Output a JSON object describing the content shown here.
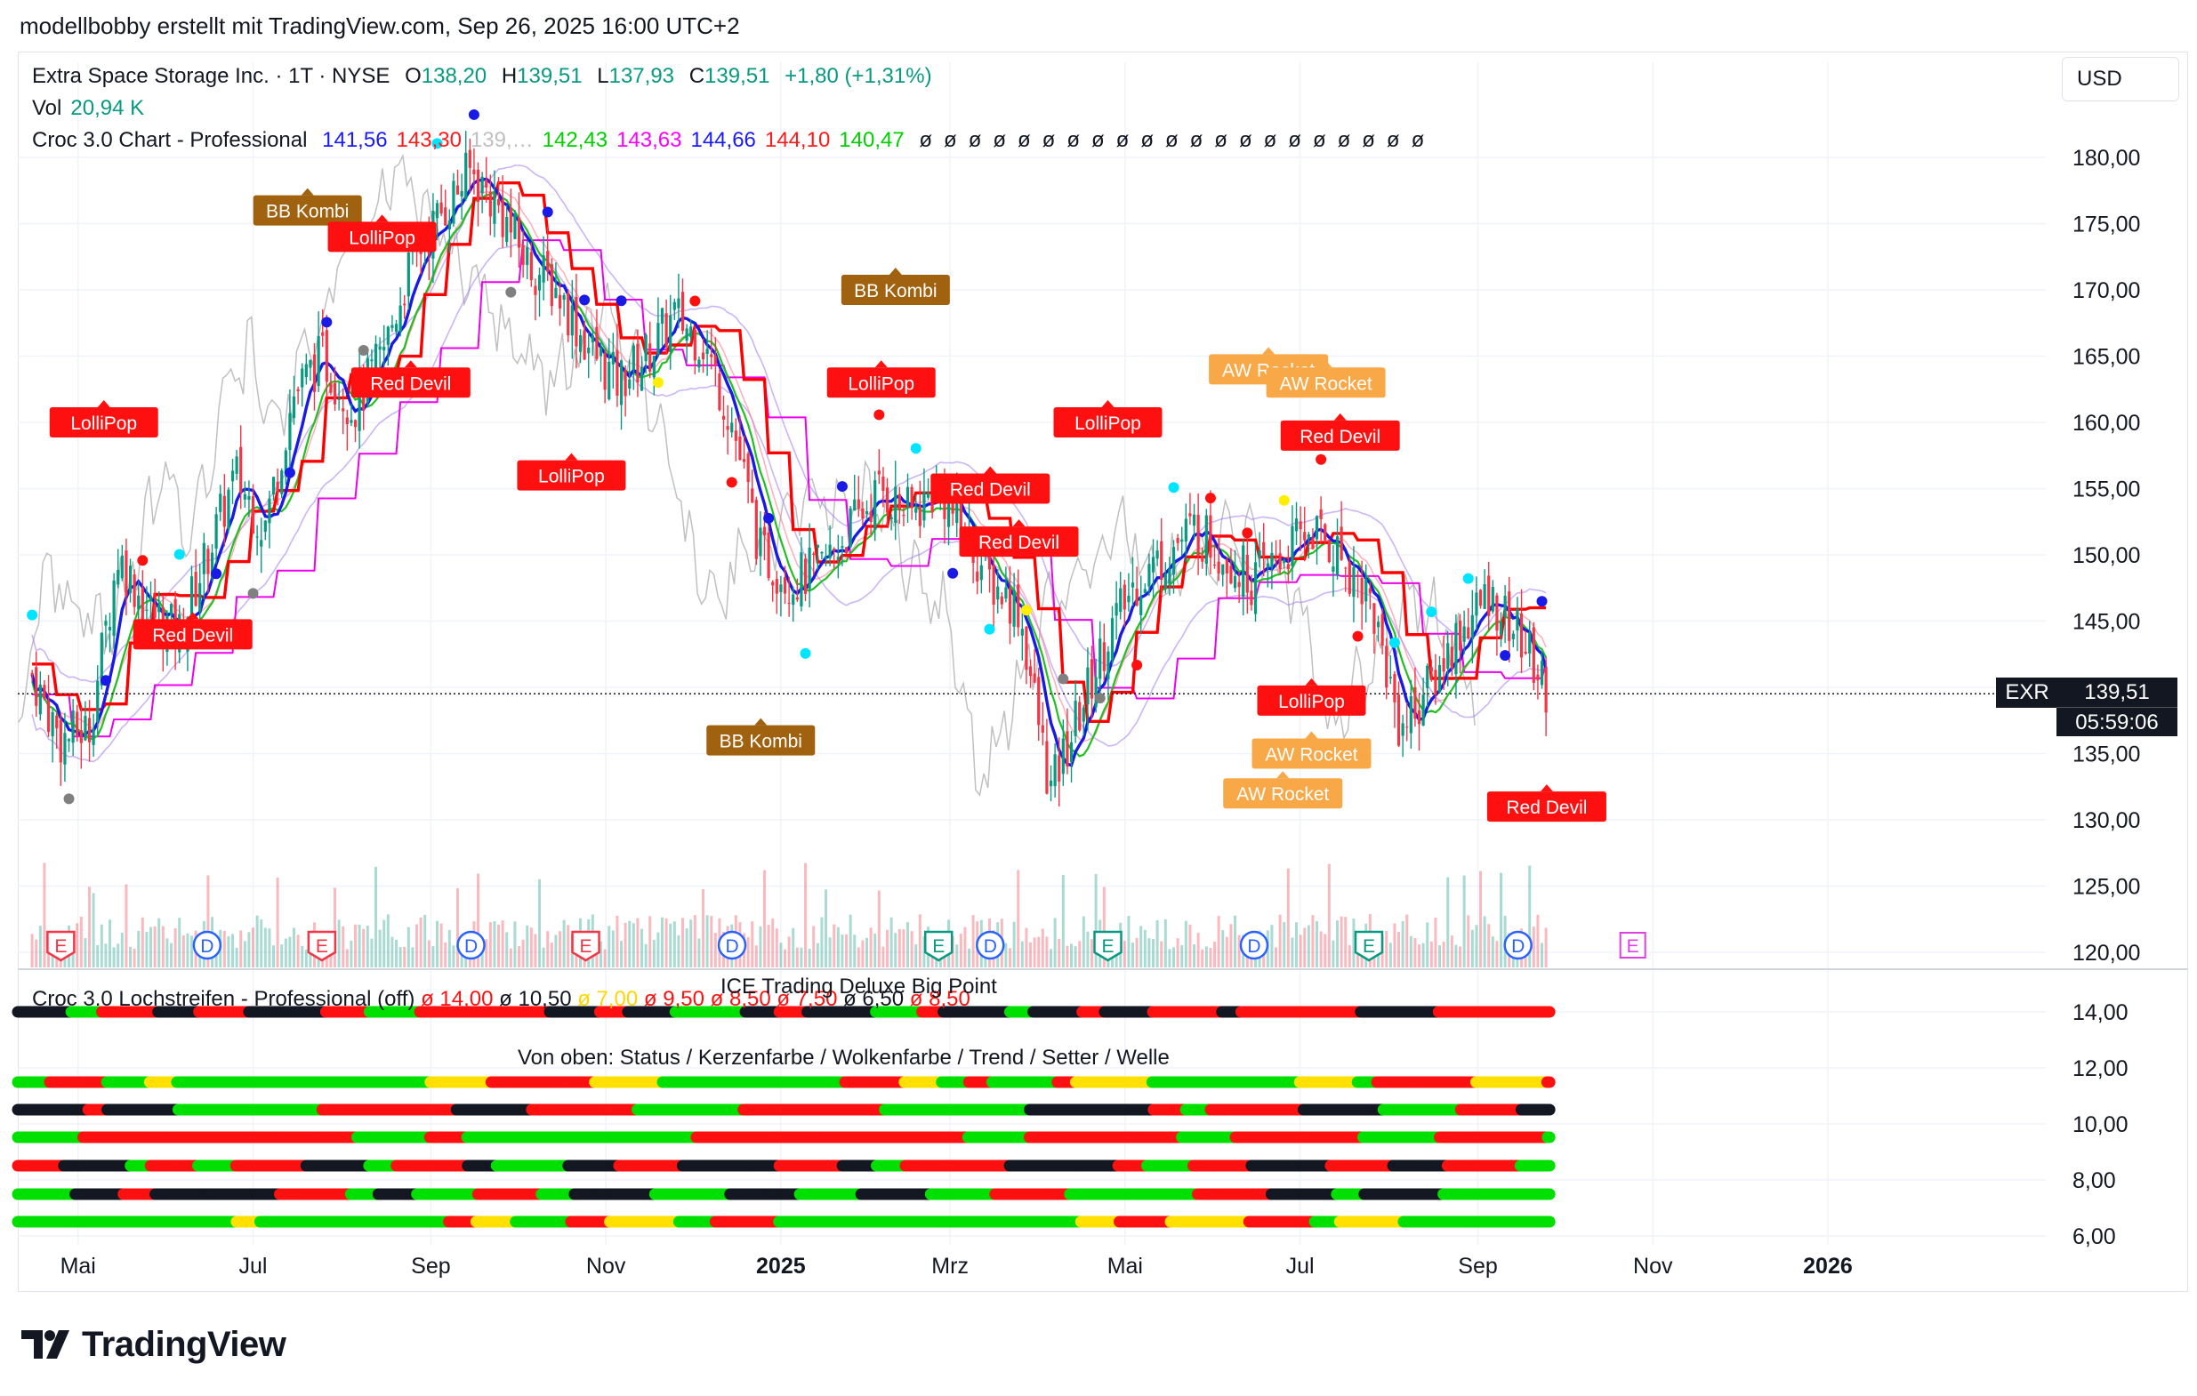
{
  "header": {
    "text": "modellbobby erstellt mit TradingView.com, Sep 26, 2025 16:00 UTC+2"
  },
  "legend": {
    "symbol": "Extra Space Storage Inc. · 1T · NYSE",
    "o_label": "O",
    "o": "138,20",
    "h_label": "H",
    "h": "139,51",
    "l_label": "L",
    "l": "137,93",
    "c_label": "C",
    "c": "139,51",
    "change": "+1,80 (+1,31%)",
    "vol_label": "Vol",
    "vol": "20,94 K",
    "croc_label": "Croc 3.0 Chart - Professional",
    "croc_values": [
      {
        "v": "141,56",
        "color": "#1a1aff"
      },
      {
        "v": "143,30",
        "color": "#ff1a1a"
      },
      {
        "v": "139,…",
        "color": "#c0c0c0"
      },
      {
        "v": "142,43",
        "color": "#00d000"
      },
      {
        "v": "143,63",
        "color": "#ff00ff"
      },
      {
        "v": "144,66",
        "color": "#1a1aff"
      },
      {
        "v": "144,10",
        "color": "#ff1a1a"
      },
      {
        "v": "140,47",
        "color": "#00d000"
      }
    ],
    "null_glyph": "ø"
  },
  "currency": "USD",
  "price_tag": {
    "symbol": "EXR",
    "price": "139,51",
    "countdown": "05:59:06"
  },
  "colors": {
    "up": "#089981",
    "down": "#f23645",
    "grid": "#f0f3fa",
    "dotted": "#131722"
  },
  "sub_panel": {
    "legend_name": "Croc 3.0 Lochstreifen - Professional (off)",
    "legend_values": [
      "14,00",
      "10,50",
      "7,00",
      "9,50",
      "8,50",
      "7,50",
      "6,50",
      "8,50"
    ],
    "title": "ICE Trading Deluxe Big Point",
    "wave_caption": "Von oben: Status / Kerzenfarbe / Wolkenfarbe / Trend / Setter / Welle",
    "y_ticks": [
      "14,00",
      "12,00",
      "10,00",
      "8,00",
      "6,00"
    ]
  },
  "footer": {
    "logo_text": "TradingView"
  },
  "chart_data": {
    "type": "candlestick",
    "title": "Extra Space Storage Inc. · 1T · NYSE",
    "ylabel": "USD",
    "ylim": [
      119,
      183
    ],
    "y_ticks": [
      120,
      125,
      130,
      135,
      140,
      145,
      150,
      155,
      160,
      165,
      170,
      175,
      180
    ],
    "y_tick_labels": [
      "120,00",
      "125,00",
      "130,00",
      "135,00",
      "140,00",
      "145,00",
      "150,00",
      "155,00",
      "160,00",
      "165,00",
      "170,00",
      "175,00",
      "180,00"
    ],
    "x_tick_labels": [
      "Mai",
      "Jul",
      "Sep",
      "Nov",
      "2025",
      "Mrz",
      "Mai",
      "Jul",
      "Sep",
      "Nov",
      "2026"
    ],
    "last_price": 139.51,
    "close_path": [
      [
        "2024-04-15",
        141
      ],
      [
        "2024-04-25",
        136
      ],
      [
        "2024-05-05",
        137
      ],
      [
        "2024-05-15",
        150
      ],
      [
        "2024-05-25",
        146
      ],
      [
        "2024-06-05",
        144
      ],
      [
        "2024-06-15",
        150
      ],
      [
        "2024-06-25",
        156
      ],
      [
        "2024-07-05",
        152
      ],
      [
        "2024-07-15",
        162
      ],
      [
        "2024-07-25",
        165
      ],
      [
        "2024-08-05",
        161
      ],
      [
        "2024-08-15",
        165
      ],
      [
        "2024-08-25",
        172
      ],
      [
        "2024-09-05",
        176
      ],
      [
        "2024-09-15",
        179
      ],
      [
        "2024-09-25",
        176
      ],
      [
        "2024-10-05",
        172
      ],
      [
        "2024-10-15",
        170
      ],
      [
        "2024-10-25",
        166
      ],
      [
        "2024-11-05",
        163
      ],
      [
        "2024-11-15",
        165
      ],
      [
        "2024-11-25",
        168
      ],
      [
        "2024-12-05",
        166
      ],
      [
        "2024-12-15",
        160
      ],
      [
        "2024-12-25",
        150
      ],
      [
        "2025-01-05",
        148
      ],
      [
        "2025-01-15",
        149
      ],
      [
        "2025-01-25",
        152
      ],
      [
        "2025-02-05",
        155
      ],
      [
        "2025-02-15",
        153
      ],
      [
        "2025-02-25",
        155
      ],
      [
        "2025-03-05",
        152
      ],
      [
        "2025-03-15",
        148
      ],
      [
        "2025-03-25",
        146
      ],
      [
        "2025-04-05",
        132
      ],
      [
        "2025-04-15",
        138
      ],
      [
        "2025-04-25",
        144
      ],
      [
        "2025-05-05",
        148
      ],
      [
        "2025-05-15",
        150
      ],
      [
        "2025-05-25",
        152
      ],
      [
        "2025-06-05",
        150
      ],
      [
        "2025-06-15",
        148
      ],
      [
        "2025-06-25",
        150
      ],
      [
        "2025-07-05",
        152
      ],
      [
        "2025-07-15",
        150
      ],
      [
        "2025-07-25",
        147
      ],
      [
        "2025-08-05",
        137
      ],
      [
        "2025-08-15",
        140
      ],
      [
        "2025-08-25",
        144
      ],
      [
        "2025-09-05",
        147
      ],
      [
        "2025-09-15",
        144
      ],
      [
        "2025-09-26",
        139.51
      ]
    ],
    "signal_labels": [
      {
        "text": "BB Kombi",
        "date": "2024-07-20",
        "price": 176,
        "color": "#a0620e"
      },
      {
        "text": "LolliPop",
        "date": "2024-08-15",
        "price": 174,
        "color": "#ff1010"
      },
      {
        "text": "Red Devil",
        "date": "2024-08-25",
        "price": 163,
        "color": "#ff1010"
      },
      {
        "text": "LolliPop",
        "date": "2024-10-20",
        "price": 156,
        "color": "#ff1010"
      },
      {
        "text": "LolliPop",
        "date": "2024-05-10",
        "price": 160,
        "color": "#ff1010"
      },
      {
        "text": "Red Devil",
        "date": "2024-06-10",
        "price": 144,
        "color": "#ff1010"
      },
      {
        "text": "BB Kombi",
        "date": "2024-12-25",
        "price": 136,
        "color": "#a0620e"
      },
      {
        "text": "BB Kombi",
        "date": "2025-02-10",
        "price": 170,
        "color": "#a0620e"
      },
      {
        "text": "LolliPop",
        "date": "2025-02-05",
        "price": 163,
        "color": "#ff1010"
      },
      {
        "text": "Red Devil",
        "date": "2025-03-15",
        "price": 155,
        "color": "#ff1010"
      },
      {
        "text": "Red Devil",
        "date": "2025-03-25",
        "price": 151,
        "color": "#ff1010"
      },
      {
        "text": "LolliPop",
        "date": "2025-04-25",
        "price": 160,
        "color": "#ff1010"
      },
      {
        "text": "AW Rocket",
        "date": "2025-06-20",
        "price": 164,
        "color": "#f9a848"
      },
      {
        "text": "AW Rocket",
        "date": "2025-07-10",
        "price": 163,
        "color": "#f9a848"
      },
      {
        "text": "Red Devil",
        "date": "2025-07-15",
        "price": 159,
        "color": "#ff1010"
      },
      {
        "text": "LolliPop",
        "date": "2025-07-05",
        "price": 139,
        "color": "#ff1010"
      },
      {
        "text": "AW Rocket",
        "date": "2025-07-05",
        "price": 135,
        "color": "#f9a848"
      },
      {
        "text": "AW Rocket",
        "date": "2025-06-25",
        "price": 132,
        "color": "#f9a848"
      },
      {
        "text": "Red Devil",
        "date": "2025-09-25",
        "price": 131,
        "color": "#ff1010"
      }
    ],
    "event_markers": [
      {
        "type": "E",
        "date": "2024-04-25"
      },
      {
        "type": "D",
        "date": "2024-06-15"
      },
      {
        "type": "E",
        "date": "2024-07-25"
      },
      {
        "type": "D",
        "date": "2024-09-15"
      },
      {
        "type": "E",
        "date": "2024-10-25"
      },
      {
        "type": "D",
        "date": "2024-12-15"
      },
      {
        "type": "E",
        "date": "2025-02-25"
      },
      {
        "type": "D",
        "date": "2025-03-15"
      },
      {
        "type": "E",
        "date": "2025-04-25"
      },
      {
        "type": "D",
        "date": "2025-06-15"
      },
      {
        "type": "E",
        "date": "2025-07-25"
      },
      {
        "type": "D",
        "date": "2025-09-15"
      },
      {
        "type": "E",
        "date": "2025-10-25"
      }
    ]
  }
}
